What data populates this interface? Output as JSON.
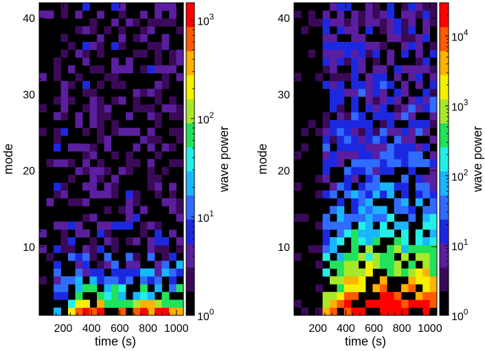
{
  "colors": {
    "scale": [
      "#000000",
      "#3a0a58",
      "#5a1e9e",
      "#1c28e0",
      "#2f6cff",
      "#19b6ff",
      "#22f0e6",
      "#21e25a",
      "#a8e82a",
      "#f4f000",
      "#ffb200",
      "#ff5a00",
      "#ff0000"
    ]
  },
  "chart_data": [
    {
      "type": "heatmap",
      "name": "left",
      "xlabel": "time (s)",
      "ylabel": "mode",
      "xlim": [
        30,
        1050
      ],
      "ylim": [
        1,
        42
      ],
      "x_ticks": [
        200,
        400,
        600,
        800,
        1000
      ],
      "y_ticks": [
        10,
        20,
        30,
        40
      ],
      "x_bins": 20,
      "y_bins": 40,
      "colorbar": {
        "label": "wave power",
        "scale": "log",
        "range": [
          1,
          1500
        ],
        "ticks": [
          {
            "base": "10",
            "exp": "0",
            "value": 1
          },
          {
            "base": "10",
            "exp": "1",
            "value": 10
          },
          {
            "base": "10",
            "exp": "2",
            "value": 100
          },
          {
            "base": "10",
            "exp": "3",
            "value": 1000
          }
        ]
      },
      "profile": {
        "low_mode_log10_power": 2.8,
        "decay_modes": 4.0,
        "onset_time": 150,
        "background_log10_power": 0.3
      }
    },
    {
      "type": "heatmap",
      "name": "right",
      "xlabel": "time (s)",
      "ylabel": "mode",
      "xlim": [
        30,
        1050
      ],
      "ylim": [
        1,
        42
      ],
      "x_ticks": [
        200,
        400,
        600,
        800,
        1000
      ],
      "y_ticks": [
        10,
        20,
        30,
        40
      ],
      "x_bins": 20,
      "y_bins": 40,
      "colorbar": {
        "label": "wave power",
        "scale": "log",
        "range": [
          1,
          30000
        ],
        "ticks": [
          {
            "base": "10",
            "exp": "0",
            "value": 1
          },
          {
            "base": "10",
            "exp": "1",
            "value": 10
          },
          {
            "base": "10",
            "exp": "2",
            "value": 100
          },
          {
            "base": "10",
            "exp": "3",
            "value": 1000
          },
          {
            "base": "10",
            "exp": "4",
            "value": 10000
          }
        ]
      },
      "profile": {
        "low_mode_log10_power": 4.3,
        "decay_modes": 9.0,
        "onset_time": 220,
        "background_log10_power": 0.8
      }
    }
  ]
}
